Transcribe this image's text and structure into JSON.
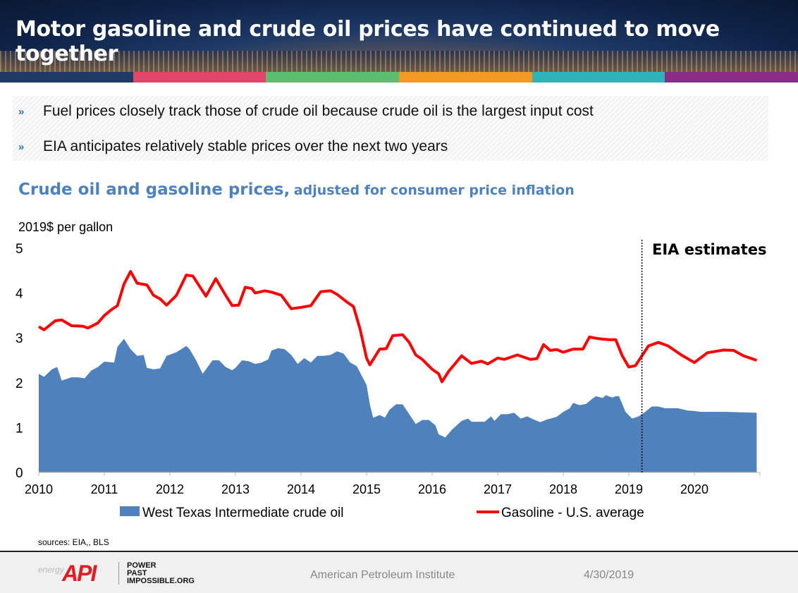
{
  "header": {
    "title": "Motor gasoline and crude oil prices have continued to move together"
  },
  "colors": {
    "strip": [
      "#1f3b63",
      "#e0466a",
      "#5cbd6e",
      "#f39a25",
      "#2fb2b8",
      "#8b2c86"
    ],
    "wti": "#4f81bd",
    "gasoline": "#ff0000",
    "title": "#4f81bd"
  },
  "bullets": [
    {
      "icon": "chevron-right-icon",
      "text": "Fuel prices closely track those of crude oil because crude oil is the largest input cost"
    },
    {
      "icon": "chevron-right-icon",
      "text": "EIA anticipates relatively stable prices over the next two years"
    }
  ],
  "chart_data": {
    "type": "area+line",
    "title": "Crude oil and gasoline prices,",
    "subtitle": "adjusted for consumer price inflation",
    "ylabel": "2019$ per gallon",
    "ylim": [
      0,
      5
    ],
    "yticks": [
      "0",
      "1",
      "2",
      "3",
      "4",
      "5"
    ],
    "xlim": [
      2010,
      2021
    ],
    "xticks": [
      "2010",
      "2011",
      "2012",
      "2013",
      "2014",
      "2015",
      "2016",
      "2017",
      "2018",
      "2019",
      "2020"
    ],
    "grid": false,
    "legend": "bottom",
    "annotation": {
      "text": "EIA estimates",
      "x": 2019.2
    },
    "series": [
      {
        "name": "West Texas Intermediate crude oil",
        "type": "area",
        "points": [
          [
            2010.0,
            2.2
          ],
          [
            2010.08,
            2.13
          ],
          [
            2010.2,
            2.3
          ],
          [
            2010.28,
            2.35
          ],
          [
            2010.35,
            2.05
          ],
          [
            2010.5,
            2.12
          ],
          [
            2010.6,
            2.12
          ],
          [
            2010.7,
            2.1
          ],
          [
            2010.8,
            2.27
          ],
          [
            2010.9,
            2.35
          ],
          [
            2011.0,
            2.47
          ],
          [
            2011.15,
            2.45
          ],
          [
            2011.2,
            2.8
          ],
          [
            2011.3,
            2.98
          ],
          [
            2011.4,
            2.75
          ],
          [
            2011.5,
            2.6
          ],
          [
            2011.6,
            2.62
          ],
          [
            2011.65,
            2.33
          ],
          [
            2011.75,
            2.3
          ],
          [
            2011.85,
            2.32
          ],
          [
            2011.95,
            2.6
          ],
          [
            2012.1,
            2.68
          ],
          [
            2012.25,
            2.82
          ],
          [
            2012.3,
            2.75
          ],
          [
            2012.4,
            2.5
          ],
          [
            2012.5,
            2.2
          ],
          [
            2012.65,
            2.5
          ],
          [
            2012.75,
            2.5
          ],
          [
            2012.85,
            2.35
          ],
          [
            2012.95,
            2.28
          ],
          [
            2013.0,
            2.33
          ],
          [
            2013.1,
            2.5
          ],
          [
            2013.2,
            2.48
          ],
          [
            2013.3,
            2.42
          ],
          [
            2013.4,
            2.45
          ],
          [
            2013.5,
            2.52
          ],
          [
            2013.55,
            2.72
          ],
          [
            2013.65,
            2.77
          ],
          [
            2013.75,
            2.75
          ],
          [
            2013.85,
            2.62
          ],
          [
            2013.95,
            2.42
          ],
          [
            2014.05,
            2.55
          ],
          [
            2014.15,
            2.45
          ],
          [
            2014.25,
            2.6
          ],
          [
            2014.35,
            2.6
          ],
          [
            2014.45,
            2.62
          ],
          [
            2014.55,
            2.7
          ],
          [
            2014.65,
            2.65
          ],
          [
            2014.75,
            2.45
          ],
          [
            2014.85,
            2.37
          ],
          [
            2015.0,
            1.95
          ],
          [
            2015.05,
            1.52
          ],
          [
            2015.1,
            1.22
          ],
          [
            2015.2,
            1.28
          ],
          [
            2015.28,
            1.22
          ],
          [
            2015.35,
            1.4
          ],
          [
            2015.45,
            1.52
          ],
          [
            2015.55,
            1.52
          ],
          [
            2015.65,
            1.3
          ],
          [
            2015.75,
            1.08
          ],
          [
            2015.85,
            1.17
          ],
          [
            2015.95,
            1.17
          ],
          [
            2016.05,
            1.05
          ],
          [
            2016.1,
            0.85
          ],
          [
            2016.2,
            0.78
          ],
          [
            2016.3,
            0.95
          ],
          [
            2016.45,
            1.15
          ],
          [
            2016.55,
            1.2
          ],
          [
            2016.6,
            1.13
          ],
          [
            2016.8,
            1.13
          ],
          [
            2016.9,
            1.25
          ],
          [
            2016.95,
            1.15
          ],
          [
            2017.05,
            1.3
          ],
          [
            2017.15,
            1.3
          ],
          [
            2017.25,
            1.33
          ],
          [
            2017.35,
            1.2
          ],
          [
            2017.45,
            1.25
          ],
          [
            2017.55,
            1.18
          ],
          [
            2017.65,
            1.12
          ],
          [
            2017.75,
            1.18
          ],
          [
            2017.9,
            1.24
          ],
          [
            2018.0,
            1.35
          ],
          [
            2018.1,
            1.43
          ],
          [
            2018.15,
            1.55
          ],
          [
            2018.25,
            1.5
          ],
          [
            2018.35,
            1.53
          ],
          [
            2018.45,
            1.65
          ],
          [
            2018.5,
            1.7
          ],
          [
            2018.6,
            1.66
          ],
          [
            2018.65,
            1.72
          ],
          [
            2018.75,
            1.67
          ],
          [
            2018.8,
            1.7
          ],
          [
            2018.85,
            1.7
          ],
          [
            2018.95,
            1.35
          ],
          [
            2019.05,
            1.2
          ],
          [
            2019.15,
            1.25
          ],
          [
            2019.25,
            1.35
          ],
          [
            2019.35,
            1.47
          ],
          [
            2019.45,
            1.47
          ],
          [
            2019.55,
            1.43
          ],
          [
            2019.75,
            1.43
          ],
          [
            2019.9,
            1.38
          ],
          [
            2020.0,
            1.37
          ],
          [
            2020.1,
            1.35
          ],
          [
            2020.5,
            1.35
          ],
          [
            2020.7,
            1.34
          ],
          [
            2020.95,
            1.33
          ]
        ]
      },
      {
        "name": "Gasoline - U.S. average",
        "type": "line",
        "points": [
          [
            2010.0,
            3.25
          ],
          [
            2010.08,
            3.18
          ],
          [
            2010.25,
            3.38
          ],
          [
            2010.35,
            3.4
          ],
          [
            2010.5,
            3.27
          ],
          [
            2010.67,
            3.26
          ],
          [
            2010.75,
            3.22
          ],
          [
            2010.9,
            3.33
          ],
          [
            2011.0,
            3.5
          ],
          [
            2011.1,
            3.62
          ],
          [
            2011.2,
            3.72
          ],
          [
            2011.3,
            4.2
          ],
          [
            2011.4,
            4.48
          ],
          [
            2011.5,
            4.22
          ],
          [
            2011.65,
            4.18
          ],
          [
            2011.75,
            3.95
          ],
          [
            2011.85,
            3.87
          ],
          [
            2011.95,
            3.73
          ],
          [
            2012.1,
            3.95
          ],
          [
            2012.25,
            4.4
          ],
          [
            2012.35,
            4.38
          ],
          [
            2012.55,
            3.93
          ],
          [
            2012.7,
            4.32
          ],
          [
            2012.85,
            3.95
          ],
          [
            2012.95,
            3.72
          ],
          [
            2013.05,
            3.73
          ],
          [
            2013.15,
            4.13
          ],
          [
            2013.25,
            4.1
          ],
          [
            2013.3,
            4.0
          ],
          [
            2013.45,
            4.05
          ],
          [
            2013.55,
            4.02
          ],
          [
            2013.7,
            3.95
          ],
          [
            2013.85,
            3.65
          ],
          [
            2014.0,
            3.68
          ],
          [
            2014.15,
            3.72
          ],
          [
            2014.3,
            4.03
          ],
          [
            2014.45,
            4.05
          ],
          [
            2014.55,
            3.97
          ],
          [
            2014.7,
            3.8
          ],
          [
            2014.8,
            3.7
          ],
          [
            2014.9,
            3.2
          ],
          [
            2015.0,
            2.55
          ],
          [
            2015.05,
            2.4
          ],
          [
            2015.2,
            2.75
          ],
          [
            2015.3,
            2.76
          ],
          [
            2015.4,
            3.05
          ],
          [
            2015.55,
            3.07
          ],
          [
            2015.65,
            2.9
          ],
          [
            2015.75,
            2.62
          ],
          [
            2015.85,
            2.52
          ],
          [
            2016.0,
            2.3
          ],
          [
            2016.1,
            2.2
          ],
          [
            2016.15,
            2.02
          ],
          [
            2016.25,
            2.25
          ],
          [
            2016.45,
            2.6
          ],
          [
            2016.6,
            2.43
          ],
          [
            2016.75,
            2.48
          ],
          [
            2016.85,
            2.42
          ],
          [
            2017.0,
            2.55
          ],
          [
            2017.1,
            2.52
          ],
          [
            2017.3,
            2.62
          ],
          [
            2017.5,
            2.52
          ],
          [
            2017.6,
            2.54
          ],
          [
            2017.7,
            2.85
          ],
          [
            2017.8,
            2.72
          ],
          [
            2017.9,
            2.74
          ],
          [
            2018.0,
            2.68
          ],
          [
            2018.15,
            2.75
          ],
          [
            2018.3,
            2.75
          ],
          [
            2018.4,
            3.02
          ],
          [
            2018.55,
            2.98
          ],
          [
            2018.7,
            2.96
          ],
          [
            2018.8,
            2.96
          ],
          [
            2018.9,
            2.6
          ],
          [
            2019.0,
            2.35
          ],
          [
            2019.1,
            2.38
          ],
          [
            2019.3,
            2.82
          ],
          [
            2019.45,
            2.9
          ],
          [
            2019.6,
            2.82
          ],
          [
            2019.8,
            2.62
          ],
          [
            2020.0,
            2.45
          ],
          [
            2020.2,
            2.67
          ],
          [
            2020.45,
            2.73
          ],
          [
            2020.6,
            2.72
          ],
          [
            2020.75,
            2.6
          ],
          [
            2020.95,
            2.5
          ]
        ]
      }
    ]
  },
  "sources": "sources:  EIA,, BLS",
  "footer": {
    "logo_energy": "energy",
    "logo_api": "API",
    "logo_tagline": [
      "POWER",
      "PAST",
      "IMPOSSIBLE.ORG"
    ],
    "organization": "American Petroleum Institute",
    "date": "4/30/2019"
  }
}
